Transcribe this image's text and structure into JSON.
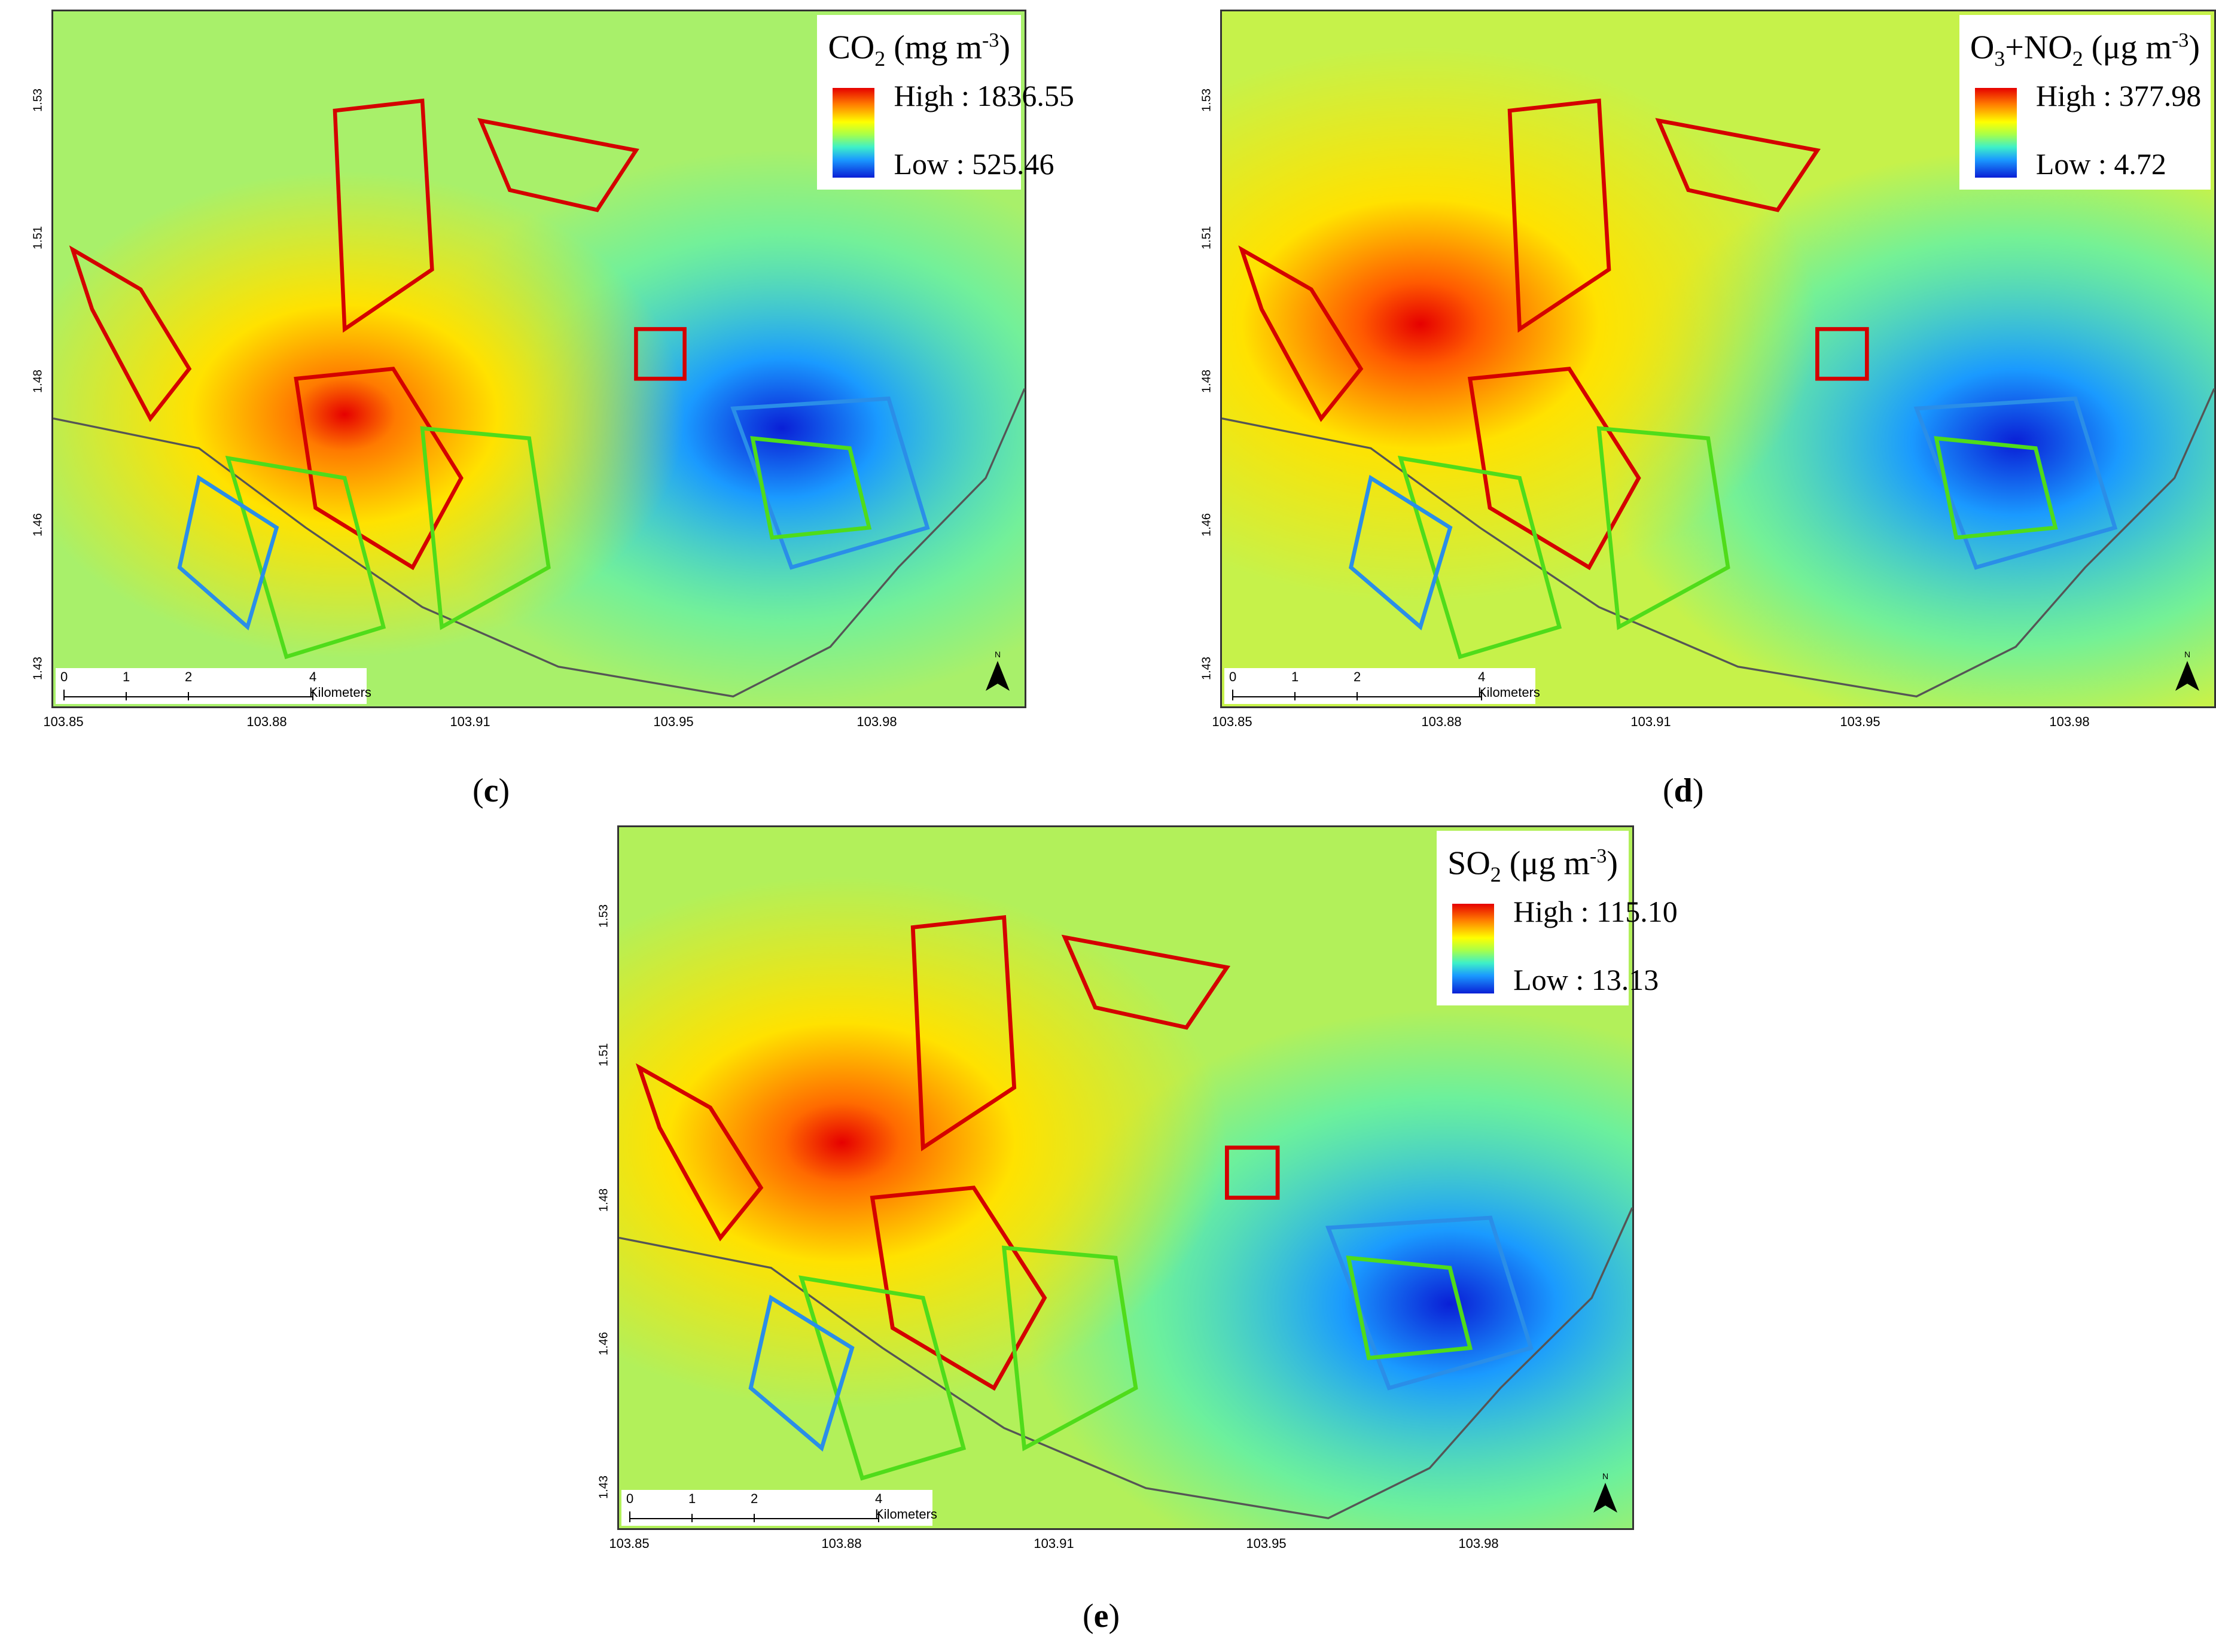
{
  "panels": [
    {
      "id": "c",
      "caption_letter": "c",
      "legend": {
        "species": "CO",
        "species_sub": "2",
        "unit_prefix": "mg m",
        "unit_sup": "-3",
        "high": "High : 1836.55",
        "low": "Low : 525.46"
      },
      "hotspot_x": 0.3,
      "hotspot_y": 0.58,
      "coldspot_x": 0.75,
      "coldspot_y": 0.6
    },
    {
      "id": "d",
      "caption_letter": "d",
      "legend": {
        "species": "O",
        "species_sub": "3",
        "plus": "+NO",
        "plus_sub": "2",
        "unit_prefix": "μg m",
        "unit_sup": "-3",
        "high": "High : 377.98",
        "low": "Low : 4.72"
      },
      "hotspot_x": 0.2,
      "hotspot_y": 0.45,
      "coldspot_x": 0.8,
      "coldspot_y": 0.62
    },
    {
      "id": "e",
      "caption_letter": "e",
      "legend": {
        "species": "SO",
        "species_sub": "2",
        "unit_prefix": "μg m",
        "unit_sup": "-3",
        "high": "High : 115.10",
        "low": "Low : 13.13"
      },
      "hotspot_x": 0.22,
      "hotspot_y": 0.45,
      "coldspot_x": 0.82,
      "coldspot_y": 0.68
    }
  ],
  "axes": {
    "y_ticks": [
      "1.53",
      "1.51",
      "1.48",
      "1.46",
      "1.43"
    ],
    "x_ticks": [
      "103.85",
      "103.88",
      "103.91",
      "103.95",
      "103.98"
    ]
  },
  "scalebar": {
    "labels": [
      "0",
      "1",
      "2",
      "4 Kilometers"
    ]
  },
  "north_label": "N",
  "colors": {
    "high": "#e60000",
    "mid": "#ffff00",
    "low": "#0a1fd6",
    "outline_red": "#d40000",
    "outline_green": "#4fdc1a",
    "outline_blue": "#2a8ee8"
  }
}
